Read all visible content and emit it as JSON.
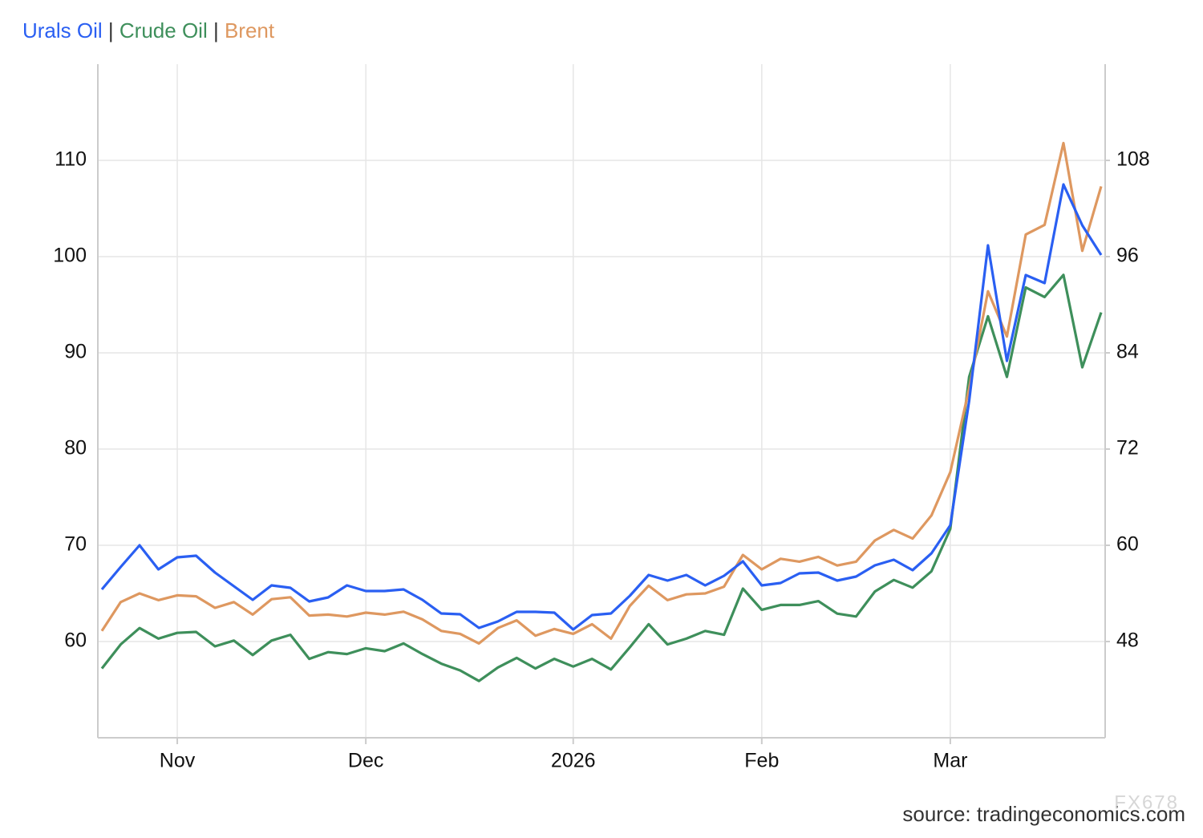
{
  "chart_data": {
    "type": "line",
    "legend_separator": "|",
    "source": "source: tradingeconomics.com",
    "watermark": "FX678",
    "categories": [
      null,
      null,
      null,
      null,
      "Nov",
      null,
      null,
      null,
      null,
      null,
      null,
      null,
      null,
      null,
      "Dec",
      null,
      null,
      null,
      null,
      null,
      null,
      null,
      null,
      null,
      null,
      "2026",
      null,
      null,
      null,
      null,
      null,
      null,
      null,
      null,
      null,
      "Feb",
      null,
      null,
      null,
      null,
      null,
      null,
      null,
      null,
      null,
      "Mar",
      null,
      null,
      null,
      null,
      null,
      null,
      null,
      null
    ],
    "series": [
      {
        "name": "Urals Oil",
        "color": "#2a5ff2",
        "axis": "y2",
        "values": [
          54.5,
          57.3,
          60.0,
          57.0,
          58.5,
          58.7,
          56.6,
          54.9,
          53.2,
          55.0,
          54.7,
          53.0,
          53.5,
          55.0,
          54.3,
          54.3,
          54.5,
          53.2,
          51.5,
          51.4,
          49.7,
          50.5,
          51.7,
          51.7,
          51.6,
          49.5,
          51.3,
          51.5,
          53.7,
          56.3,
          55.6,
          56.3,
          55.0,
          56.2,
          58.0,
          55.0,
          55.3,
          56.5,
          56.6,
          55.6,
          56.1,
          57.5,
          58.2,
          56.9,
          59.0,
          62.5,
          78.0,
          97.4,
          83.0,
          93.7,
          92.7,
          105.0,
          99.9,
          96.2
        ]
      },
      {
        "name": "Crude Oil",
        "color": "#3e8f5b",
        "values": [
          57.2,
          59.7,
          61.4,
          60.3,
          60.9,
          61.0,
          59.5,
          60.1,
          58.6,
          60.1,
          60.7,
          58.2,
          58.9,
          58.7,
          59.3,
          59.0,
          59.8,
          58.7,
          57.7,
          57.0,
          55.9,
          57.3,
          58.3,
          57.2,
          58.2,
          57.4,
          58.2,
          57.1,
          59.4,
          61.8,
          59.7,
          60.3,
          61.1,
          60.7,
          65.5,
          63.3,
          63.8,
          63.8,
          64.2,
          62.9,
          62.6,
          65.2,
          66.4,
          65.6,
          67.3,
          71.7,
          87.5,
          93.8,
          87.5,
          96.8,
          95.8,
          98.1,
          88.5,
          94.2
        ]
      },
      {
        "name": "Brent",
        "color": "#de9860",
        "values": [
          61.1,
          64.1,
          65.0,
          64.3,
          64.8,
          64.7,
          63.5,
          64.1,
          62.8,
          64.4,
          64.6,
          62.7,
          62.8,
          62.6,
          63.0,
          62.8,
          63.1,
          62.3,
          61.1,
          60.8,
          59.8,
          61.4,
          62.2,
          60.6,
          61.3,
          60.8,
          61.8,
          60.3,
          63.7,
          65.8,
          64.3,
          64.9,
          65.0,
          65.7,
          69.0,
          67.5,
          68.6,
          68.3,
          68.8,
          67.9,
          68.3,
          70.5,
          71.6,
          70.7,
          73.1,
          77.6,
          86.3,
          96.4,
          91.7,
          102.3,
          103.3,
          111.8,
          100.6,
          107.3
        ]
      }
    ],
    "ylim": [
      50,
      120
    ],
    "yticks": [
      60,
      70,
      80,
      90,
      100,
      110
    ],
    "y2lim": [
      36,
      120
    ],
    "y2ticks": [
      48,
      60,
      72,
      84,
      96,
      108
    ],
    "grid": true
  }
}
